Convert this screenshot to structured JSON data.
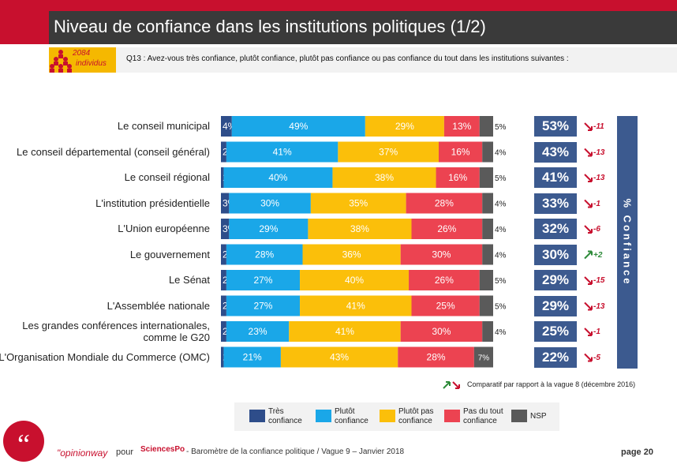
{
  "header": {
    "title": "Niveau de confiance dans les institutions politiques (1/2)",
    "sample_n": "2084",
    "sample_unit": "individus",
    "question": "Q13 : Avez-vous très confiance, plutôt confiance, plutôt pas confiance ou pas confiance du tout dans les institutions suivantes :"
  },
  "chart_data": {
    "type": "bar",
    "orientation": "horizontal",
    "stacked": true,
    "unit": "%",
    "categories": [
      "Le conseil municipal",
      "Le conseil départemental (conseil général)",
      "Le conseil régional",
      "L'institution présidentielle",
      "L'Union européenne",
      "Le gouvernement",
      "Le Sénat",
      "L'Assemblée nationale",
      "Les grandes conférences internationales, comme le G20",
      "L'Organisation Mondiale du Commerce (OMC)"
    ],
    "series": [
      {
        "name": "Très confiance",
        "color": "#2e4d8a",
        "values": [
          4,
          2,
          1,
          3,
          3,
          2,
          2,
          2,
          2,
          1
        ]
      },
      {
        "name": "Plutôt confiance",
        "color": "#1aa7e8",
        "values": [
          49,
          41,
          40,
          30,
          29,
          28,
          27,
          27,
          23,
          21
        ]
      },
      {
        "name": "Plutôt pas confiance",
        "color": "#fbbf0a",
        "values": [
          29,
          37,
          38,
          35,
          38,
          36,
          40,
          41,
          41,
          43
        ]
      },
      {
        "name": "Pas du tout confiance",
        "color": "#ec4351",
        "values": [
          13,
          16,
          16,
          28,
          26,
          30,
          26,
          25,
          30,
          28
        ]
      },
      {
        "name": "NSP",
        "color": "#5a5a5a",
        "values": [
          5,
          4,
          5,
          4,
          4,
          4,
          5,
          5,
          4,
          7
        ]
      }
    ],
    "confidence_total": {
      "label": "% Confiance",
      "values": [
        "53%",
        "43%",
        "41%",
        "33%",
        "32%",
        "30%",
        "29%",
        "29%",
        "25%",
        "22%"
      ]
    },
    "evolution": {
      "values": [
        "-11",
        "-13",
        "-13",
        "-1",
        "-6",
        "+2",
        "-15",
        "-13",
        "-1",
        "-5"
      ],
      "note": "Comparatif par rapport à la vague 8 (décembre 2016)"
    }
  },
  "footer": {
    "brand": "\"opinionway",
    "pour": "pour",
    "partner": "SciencesPo",
    "text": "- Baromètre de la confiance politique / Vague 9 – Janvier 2018",
    "page": "page 20"
  }
}
